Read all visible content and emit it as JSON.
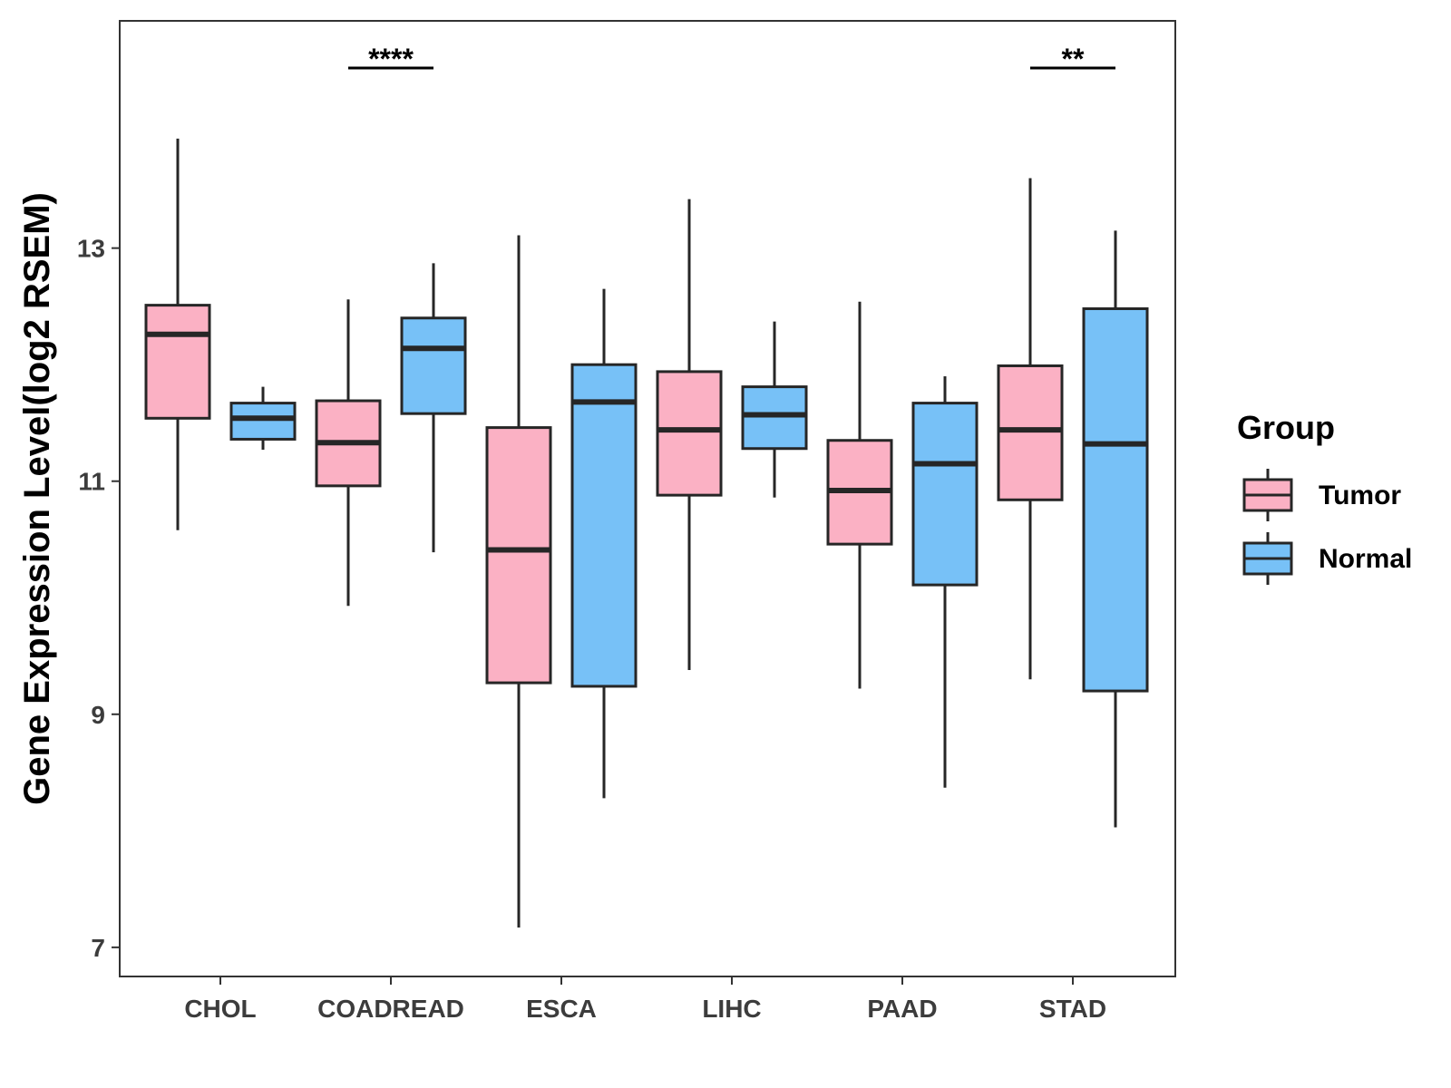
{
  "chart_data": {
    "type": "boxplot",
    "title": "",
    "xlabel": "",
    "ylabel": "Gene Expression Level(log2 RSEM)",
    "ylim": [
      6.75,
      14.95
    ],
    "yticks": [
      7,
      9,
      11,
      13
    ],
    "categories": [
      "CHOL",
      "COADREAD",
      "ESCA",
      "LIHC",
      "PAAD",
      "STAD"
    ],
    "legend": {
      "title": "Group",
      "position": "right",
      "entries": [
        "Tumor",
        "Normal"
      ]
    },
    "colors": {
      "Tumor": "#fbb1c4",
      "Normal": "#77c1f7",
      "stroke": "#262626"
    },
    "series": [
      {
        "name": "Tumor",
        "boxes": [
          {
            "category": "CHOL",
            "whisker_low": 10.58,
            "q1": 11.54,
            "median": 12.26,
            "q3": 12.51,
            "whisker_high": 13.94
          },
          {
            "category": "COADREAD",
            "whisker_low": 9.93,
            "q1": 10.96,
            "median": 11.33,
            "q3": 11.69,
            "whisker_high": 12.56
          },
          {
            "category": "ESCA",
            "whisker_low": 7.17,
            "q1": 9.27,
            "median": 10.41,
            "q3": 11.46,
            "whisker_high": 13.11
          },
          {
            "category": "LIHC",
            "whisker_low": 9.38,
            "q1": 10.88,
            "median": 11.44,
            "q3": 11.94,
            "whisker_high": 13.42
          },
          {
            "category": "PAAD",
            "whisker_low": 9.22,
            "q1": 10.46,
            "median": 10.92,
            "q3": 11.35,
            "whisker_high": 12.54
          },
          {
            "category": "STAD",
            "whisker_low": 9.3,
            "q1": 10.84,
            "median": 11.44,
            "q3": 11.99,
            "whisker_high": 13.6
          }
        ]
      },
      {
        "name": "Normal",
        "boxes": [
          {
            "category": "CHOL",
            "whisker_low": 11.27,
            "q1": 11.36,
            "median": 11.54,
            "q3": 11.67,
            "whisker_high": 11.81
          },
          {
            "category": "COADREAD",
            "whisker_low": 10.39,
            "q1": 11.58,
            "median": 12.14,
            "q3": 12.4,
            "whisker_high": 12.87
          },
          {
            "category": "ESCA",
            "whisker_low": 8.28,
            "q1": 9.24,
            "median": 11.68,
            "q3": 12.0,
            "whisker_high": 12.65
          },
          {
            "category": "LIHC",
            "whisker_low": 10.86,
            "q1": 11.28,
            "median": 11.57,
            "q3": 11.81,
            "whisker_high": 12.37
          },
          {
            "category": "PAAD",
            "whisker_low": 8.37,
            "q1": 10.11,
            "median": 11.15,
            "q3": 11.67,
            "whisker_high": 11.9
          },
          {
            "category": "STAD",
            "whisker_low": 8.03,
            "q1": 9.2,
            "median": 11.32,
            "q3": 12.48,
            "whisker_high": 13.15
          }
        ]
      }
    ],
    "annotations": [
      {
        "category": "COADREAD",
        "label": "****"
      },
      {
        "category": "STAD",
        "label": "**"
      }
    ]
  }
}
